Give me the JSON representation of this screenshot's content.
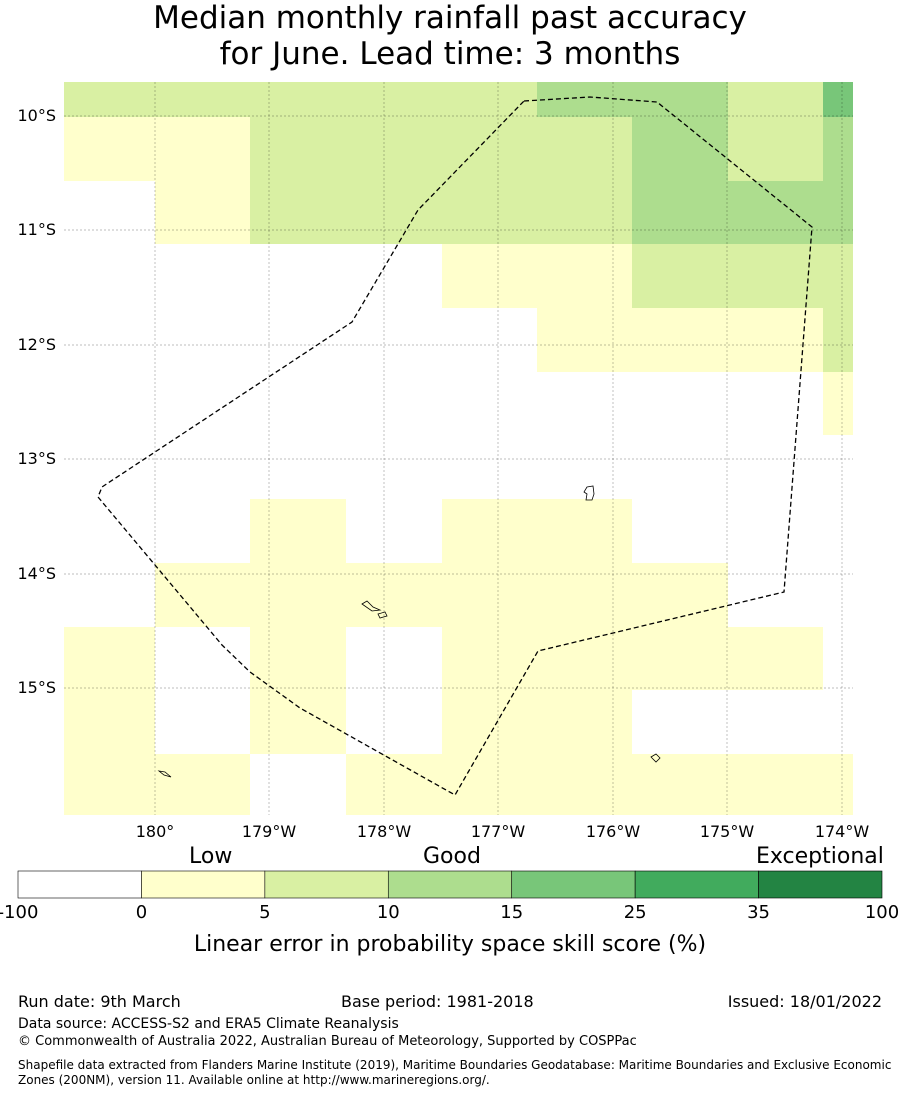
{
  "title": {
    "line1": "Median monthly rainfall past accuracy",
    "line2": "for June. Lead time: 3 months"
  },
  "map": {
    "lat_labels": [
      "10°S",
      "11°S",
      "12°S",
      "13°S",
      "14°S",
      "15°S"
    ],
    "lon_labels": [
      "180°",
      "179°W",
      "178°W",
      "177°W",
      "176°W",
      "175°W",
      "174°W"
    ],
    "grid_categories": [
      [
        2,
        2,
        2,
        2,
        2,
        3,
        3,
        2,
        4
      ],
      [
        1,
        1,
        2,
        2,
        2,
        2,
        3,
        2,
        3
      ],
      [
        0,
        1,
        2,
        2,
        2,
        2,
        3,
        3,
        3
      ],
      [
        0,
        0,
        0,
        0,
        1,
        1,
        2,
        2,
        2
      ],
      [
        0,
        0,
        0,
        0,
        0,
        1,
        1,
        1,
        2
      ],
      [
        0,
        0,
        0,
        0,
        0,
        0,
        0,
        0,
        1
      ],
      [
        0,
        0,
        0,
        0,
        0,
        0,
        0,
        0,
        0
      ],
      [
        0,
        0,
        1,
        0,
        1,
        1,
        0,
        0,
        0
      ],
      [
        0,
        1,
        1,
        1,
        1,
        1,
        1,
        0,
        0
      ],
      [
        1,
        0,
        1,
        0,
        1,
        1,
        1,
        1,
        0
      ],
      [
        1,
        0,
        1,
        0,
        1,
        1,
        0,
        0,
        0
      ],
      [
        1,
        1,
        0,
        1,
        1,
        1,
        1,
        1,
        1
      ]
    ]
  },
  "legend": {
    "category_labels": [
      "Low",
      "Good",
      "Exceptional"
    ],
    "ticks": [
      "-100",
      "0",
      "5",
      "10",
      "15",
      "25",
      "35",
      "100"
    ],
    "colors": [
      "#ffffff",
      "#ffffcc",
      "#d9f0a3",
      "#addd8e",
      "#78c679",
      "#41ab5d",
      "#238443"
    ],
    "title": "Linear error in probability space skill score (%)"
  },
  "footer": {
    "run_date": "Run date: 9th March",
    "base_period": "Base period: 1981-2018",
    "issued": "Issued: 18/01/2022",
    "data_source": "Data source: ACCESS-S2 and ERA5 Climate Reanalysis",
    "copyright": "© Commonwealth of Australia 2022, Australian Bureau of Meteorology, Supported by COSPPac",
    "shapefile_line1": "Shapefile data extracted from Flanders Marine Institute (2019), Maritime Boundaries Geodatabase: Maritime Boundaries and Exclusive Economic",
    "shapefile_line2": "Zones (200NM), version 11. Available online at http://www.marineregions.org/."
  }
}
